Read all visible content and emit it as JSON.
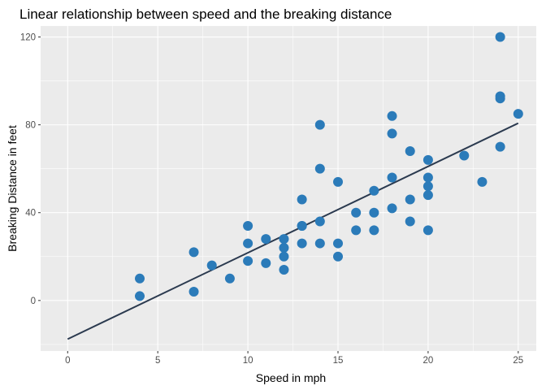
{
  "chart_data": {
    "type": "scatter",
    "title": "Linear relationship between speed and the breaking distance",
    "xlabel": "Speed in mph",
    "ylabel": "Breaking Distance in feet",
    "xlim": [
      -1.5,
      26.0
    ],
    "ylim": [
      -23,
      125
    ],
    "x_ticks": [
      0,
      5,
      10,
      15,
      20,
      25
    ],
    "y_ticks": [
      0,
      40,
      80,
      120
    ],
    "grid": true,
    "legend": "none",
    "colors": {
      "point": "#2b7bb9",
      "line": "#2b3a4f",
      "panel": "#ebebeb",
      "grid": "#ffffff"
    },
    "points": [
      {
        "x": 4,
        "y": 2
      },
      {
        "x": 4,
        "y": 10
      },
      {
        "x": 7,
        "y": 4
      },
      {
        "x": 7,
        "y": 22
      },
      {
        "x": 8,
        "y": 16
      },
      {
        "x": 9,
        "y": 10
      },
      {
        "x": 10,
        "y": 18
      },
      {
        "x": 10,
        "y": 26
      },
      {
        "x": 10,
        "y": 34
      },
      {
        "x": 11,
        "y": 17
      },
      {
        "x": 11,
        "y": 28
      },
      {
        "x": 12,
        "y": 14
      },
      {
        "x": 12,
        "y": 20
      },
      {
        "x": 12,
        "y": 24
      },
      {
        "x": 12,
        "y": 28
      },
      {
        "x": 13,
        "y": 26
      },
      {
        "x": 13,
        "y": 34
      },
      {
        "x": 13,
        "y": 34
      },
      {
        "x": 13,
        "y": 46
      },
      {
        "x": 14,
        "y": 26
      },
      {
        "x": 14,
        "y": 36
      },
      {
        "x": 14,
        "y": 60
      },
      {
        "x": 14,
        "y": 80
      },
      {
        "x": 15,
        "y": 20
      },
      {
        "x": 15,
        "y": 26
      },
      {
        "x": 15,
        "y": 54
      },
      {
        "x": 16,
        "y": 32
      },
      {
        "x": 16,
        "y": 40
      },
      {
        "x": 17,
        "y": 32
      },
      {
        "x": 17,
        "y": 40
      },
      {
        "x": 17,
        "y": 50
      },
      {
        "x": 18,
        "y": 42
      },
      {
        "x": 18,
        "y": 56
      },
      {
        "x": 18,
        "y": 76
      },
      {
        "x": 18,
        "y": 84
      },
      {
        "x": 19,
        "y": 36
      },
      {
        "x": 19,
        "y": 46
      },
      {
        "x": 19,
        "y": 68
      },
      {
        "x": 20,
        "y": 32
      },
      {
        "x": 20,
        "y": 48
      },
      {
        "x": 20,
        "y": 52
      },
      {
        "x": 20,
        "y": 56
      },
      {
        "x": 20,
        "y": 64
      },
      {
        "x": 22,
        "y": 66
      },
      {
        "x": 23,
        "y": 54
      },
      {
        "x": 24,
        "y": 70
      },
      {
        "x": 24,
        "y": 92
      },
      {
        "x": 24,
        "y": 93
      },
      {
        "x": 24,
        "y": 120
      },
      {
        "x": 25,
        "y": 85
      }
    ],
    "fit_line": {
      "x": [
        0,
        25
      ],
      "y": [
        -17.58,
        80.73
      ]
    }
  }
}
